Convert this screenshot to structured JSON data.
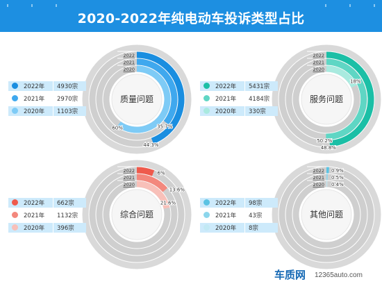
{
  "title": "2020-2022年纯电动车投诉类型占比",
  "footer": {
    "brand": "车质网",
    "url": "12365auto.com"
  },
  "chart_data": [
    {
      "type": "donut",
      "center_label": "质量问题",
      "ring_labels": [
        "2022",
        "2021",
        "2020"
      ],
      "colors": [
        "#1a8ee0",
        "#3fa8ee",
        "#7ecbf6"
      ],
      "legend": [
        {
          "year": "2022年",
          "value": "4930宗"
        },
        {
          "year": "2021年",
          "value": "2970宗"
        },
        {
          "year": "2020年",
          "value": "1103宗"
        }
      ],
      "series": [
        {
          "name": "2022",
          "percent": 44.3,
          "label": "44.3%"
        },
        {
          "name": "2021",
          "percent": 35.7,
          "label": "35.7%"
        },
        {
          "name": "2020",
          "percent": 60,
          "label": "60%"
        }
      ]
    },
    {
      "type": "donut",
      "center_label": "服务问题",
      "ring_labels": [
        "2022",
        "2021",
        "2020"
      ],
      "colors": [
        "#1bbfa6",
        "#5fd6c4",
        "#a9eadf"
      ],
      "legend": [
        {
          "year": "2022年",
          "value": "5431宗"
        },
        {
          "year": "2021年",
          "value": "4184宗"
        },
        {
          "year": "2020年",
          "value": "330宗"
        }
      ],
      "series": [
        {
          "name": "2022",
          "percent": 48.8,
          "label": "48.8%"
        },
        {
          "name": "2021",
          "percent": 50.2,
          "label": "50.2%"
        },
        {
          "name": "2020",
          "percent": 18,
          "label": "18%"
        }
      ]
    },
    {
      "type": "donut",
      "center_label": "综合问题",
      "ring_labels": [
        "2022",
        "2021",
        "2020"
      ],
      "colors": [
        "#ef5a4c",
        "#f3887d",
        "#f8c0b9"
      ],
      "legend": [
        {
          "year": "2022年",
          "value": "662宗"
        },
        {
          "year": "2021年",
          "value": "1132宗"
        },
        {
          "year": "2020年",
          "value": "396宗"
        }
      ],
      "series": [
        {
          "name": "2022",
          "percent": 6,
          "label": "6%"
        },
        {
          "name": "2021",
          "percent": 13.6,
          "label": "13.6%"
        },
        {
          "name": "2020",
          "percent": 21.6,
          "label": "21.6%"
        }
      ]
    },
    {
      "type": "donut",
      "center_label": "其他问题",
      "ring_labels": [
        "2022",
        "2021",
        "2020"
      ],
      "colors": [
        "#5bc3e3",
        "#8cd6ec",
        "#c2e9f4"
      ],
      "legend": [
        {
          "year": "2022年",
          "value": "98宗"
        },
        {
          "year": "2021年",
          "value": "43宗"
        },
        {
          "year": "2020年",
          "value": "8宗"
        }
      ],
      "series": [
        {
          "name": "2022",
          "percent": 0.9,
          "label": "0.9%"
        },
        {
          "name": "2021",
          "percent": 0.5,
          "label": "0.5%"
        },
        {
          "name": "2020",
          "percent": 0.4,
          "label": "0.4%"
        }
      ]
    }
  ]
}
